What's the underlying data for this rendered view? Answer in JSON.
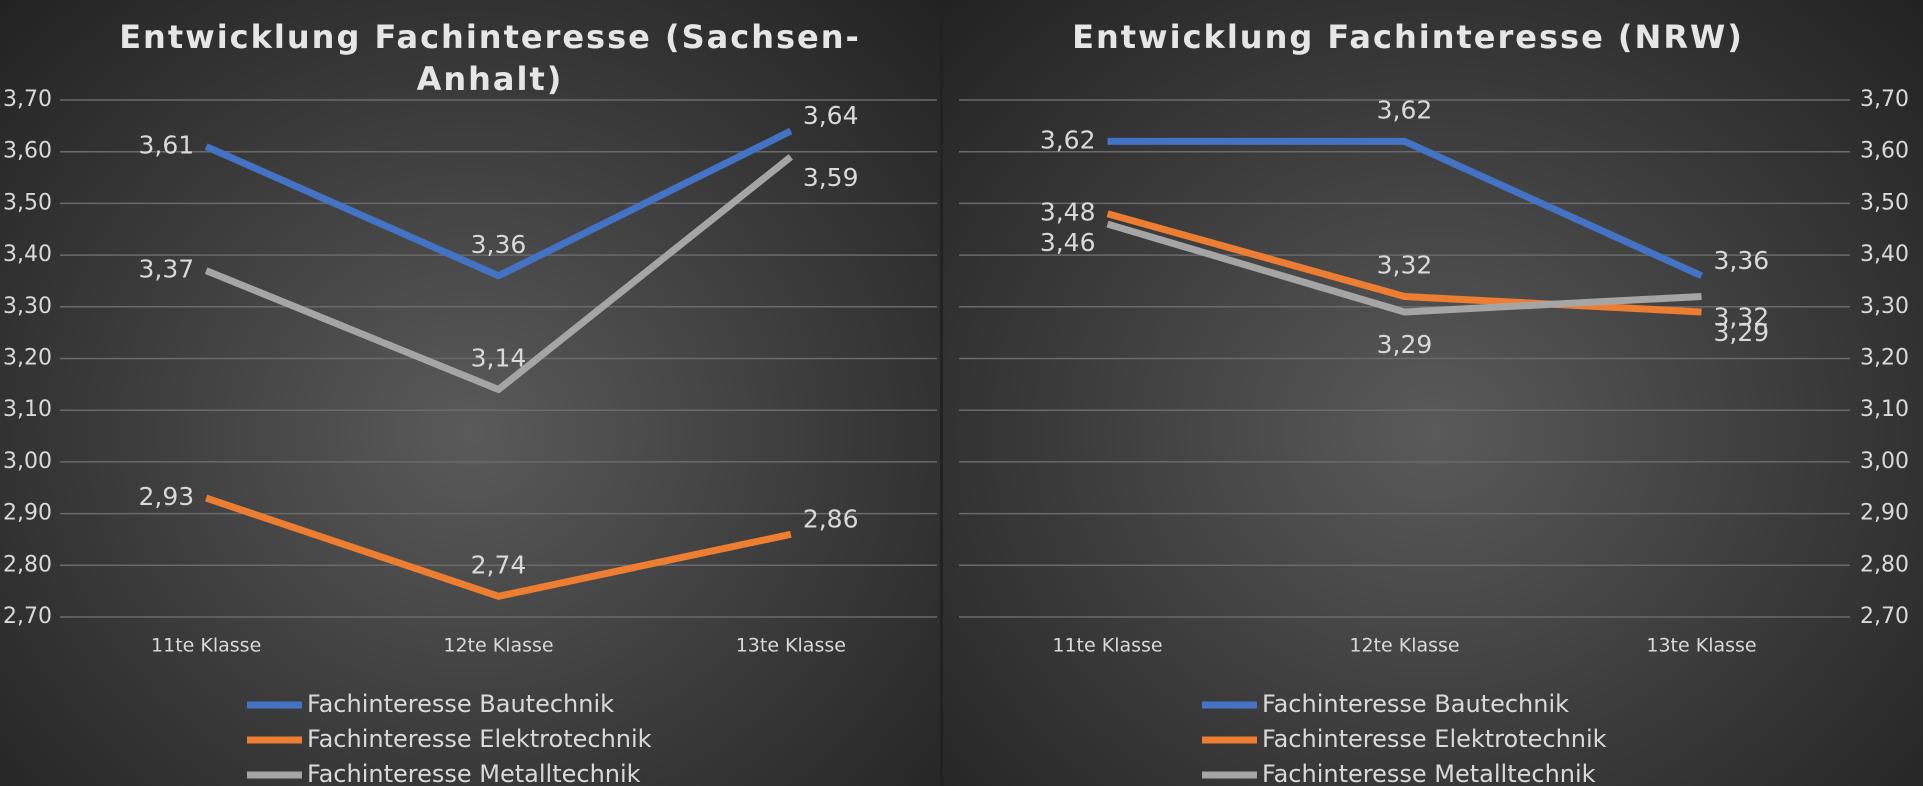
{
  "chart_data": [
    {
      "type": "line",
      "title": "Entwicklung Fachinteresse (Sachsen-Anhalt)",
      "categories": [
        "11te Klasse",
        "12te Klasse",
        "13te Klasse"
      ],
      "ylim": [
        2.7,
        3.7
      ],
      "yticks": [
        {
          "value": 2.7,
          "label": "2,70"
        },
        {
          "value": 2.8,
          "label": "2,80"
        },
        {
          "value": 2.9,
          "label": "2,90"
        },
        {
          "value": 3.0,
          "label": "3,00"
        },
        {
          "value": 3.1,
          "label": "3,10"
        },
        {
          "value": 3.2,
          "label": "3,20"
        },
        {
          "value": 3.3,
          "label": "3,30"
        },
        {
          "value": 3.4,
          "label": "3,40"
        },
        {
          "value": 3.5,
          "label": "3,50"
        },
        {
          "value": 3.6,
          "label": "3,60"
        },
        {
          "value": 3.7,
          "label": "3,70"
        }
      ],
      "yaxis_position": "left",
      "grid": true,
      "legend": "bottom",
      "series": [
        {
          "name": "Fachinteresse Bautechnik",
          "color": "#4472c4",
          "values": [
            3.61,
            3.36,
            3.64
          ],
          "value_labels": [
            "3,61",
            "3,36",
            "3,64"
          ]
        },
        {
          "name": "Fachinteresse Elektrotechnik",
          "color": "#ed7d31",
          "values": [
            2.93,
            2.74,
            2.86
          ],
          "value_labels": [
            "2,93",
            "2,74",
            "2,86"
          ]
        },
        {
          "name": "Fachinteresse Metalltechnik",
          "color": "#a5a5a5",
          "values": [
            3.37,
            3.14,
            3.59
          ],
          "value_labels": [
            "3,37",
            "3,14",
            "3,59"
          ]
        }
      ]
    },
    {
      "type": "line",
      "title": "Entwicklung Fachinteresse (NRW)",
      "categories": [
        "11te Klasse",
        "12te Klasse",
        "13te Klasse"
      ],
      "ylim": [
        2.7,
        3.7
      ],
      "yticks": [
        {
          "value": 2.7,
          "label": "2,70"
        },
        {
          "value": 2.8,
          "label": "2,80"
        },
        {
          "value": 2.9,
          "label": "2,90"
        },
        {
          "value": 3.0,
          "label": "3,00"
        },
        {
          "value": 3.1,
          "label": "3,10"
        },
        {
          "value": 3.2,
          "label": "3,20"
        },
        {
          "value": 3.3,
          "label": "3,30"
        },
        {
          "value": 3.4,
          "label": "3,40"
        },
        {
          "value": 3.5,
          "label": "3,50"
        },
        {
          "value": 3.6,
          "label": "3,60"
        },
        {
          "value": 3.7,
          "label": "3,70"
        }
      ],
      "yaxis_position": "right",
      "grid": true,
      "legend": "bottom",
      "series": [
        {
          "name": "Fachinteresse Bautechnik",
          "color": "#4472c4",
          "values": [
            3.62,
            3.62,
            3.36
          ],
          "value_labels": [
            "3,62",
            "3,62",
            "3,36"
          ]
        },
        {
          "name": "Fachinteresse Elektrotechnik",
          "color": "#ed7d31",
          "values": [
            3.48,
            3.32,
            3.29
          ],
          "value_labels": [
            "3,48",
            "3,32",
            "3,29"
          ]
        },
        {
          "name": "Fachinteresse Metalltechnik",
          "color": "#a5a5a5",
          "values": [
            3.46,
            3.29,
            3.32
          ],
          "value_labels": [
            "3,46",
            "3,29",
            "3,32"
          ]
        }
      ]
    }
  ]
}
